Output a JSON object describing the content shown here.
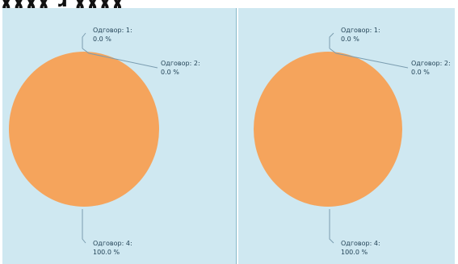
{
  "header": {
    "text": "ɣɣɣɣ ɹ ɣɣɣɣ"
  },
  "colors": {
    "panel_background": "#cfe8f1",
    "divider": "#88b9c9",
    "pie_main": "#f5a45c",
    "leader_line": "#7b9db0",
    "label_text": "#1f3f53"
  },
  "chart_data": [
    {
      "type": "pie",
      "title": "",
      "legend": "none",
      "grid": false,
      "slices": [
        {
          "label": "Одговор: 1:",
          "value": 0.0,
          "value_text": "0.0 %"
        },
        {
          "label": "Одговор: 2:",
          "value": 0.0,
          "value_text": "0.0 %"
        },
        {
          "label": "Одговор: 4:",
          "value": 100.0,
          "value_text": "100.0 %"
        }
      ]
    },
    {
      "type": "pie",
      "title": "",
      "legend": "none",
      "grid": false,
      "slices": [
        {
          "label": "Одговор: 1:",
          "value": 0.0,
          "value_text": "0.0 %"
        },
        {
          "label": "Одговор: 2:",
          "value": 0.0,
          "value_text": "0.0 %"
        },
        {
          "label": "Одговор: 4:",
          "value": 100.0,
          "value_text": "100.0 %"
        }
      ]
    }
  ]
}
